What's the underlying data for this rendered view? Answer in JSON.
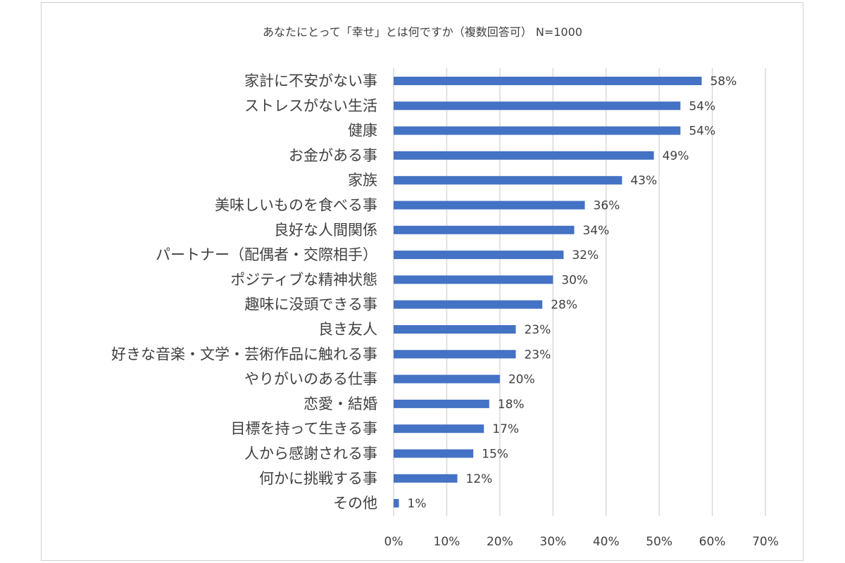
{
  "chart_data": {
    "type": "bar",
    "orientation": "horizontal",
    "title": "あなたにとって「幸せ」とは何ですか（複数回答可） N=1000",
    "categories": [
      "家計に不安がない事",
      "ストレスがない生活",
      "健康",
      "お金がある事",
      "家族",
      "美味しいものを食べる事",
      "良好な人間関係",
      "パートナー（配偶者・交際相手）",
      "ポジティブな精神状態",
      "趣味に没頭できる事",
      "良き友人",
      "好きな音楽・文学・芸術作品に触れる事",
      "やりがいのある仕事",
      "恋愛・結婚",
      "目標を持って生きる事",
      "人から感謝される事",
      "何かに挑戦する事",
      "その他"
    ],
    "values": [
      58,
      54,
      54,
      49,
      43,
      36,
      34,
      32,
      30,
      28,
      23,
      23,
      20,
      18,
      17,
      15,
      12,
      1
    ],
    "value_labels": [
      "58%",
      "54%",
      "54%",
      "49%",
      "43%",
      "36%",
      "34%",
      "32%",
      "30%",
      "28%",
      "23%",
      "23%",
      "20%",
      "18%",
      "17%",
      "15%",
      "12%",
      "1%"
    ],
    "xlim": [
      0,
      70
    ],
    "x_ticks": [
      "0%",
      "10%",
      "20%",
      "30%",
      "40%",
      "50%",
      "60%",
      "70%"
    ],
    "grid": true,
    "bar_color": "#4472c4",
    "grid_color": "#d9d9d9"
  }
}
